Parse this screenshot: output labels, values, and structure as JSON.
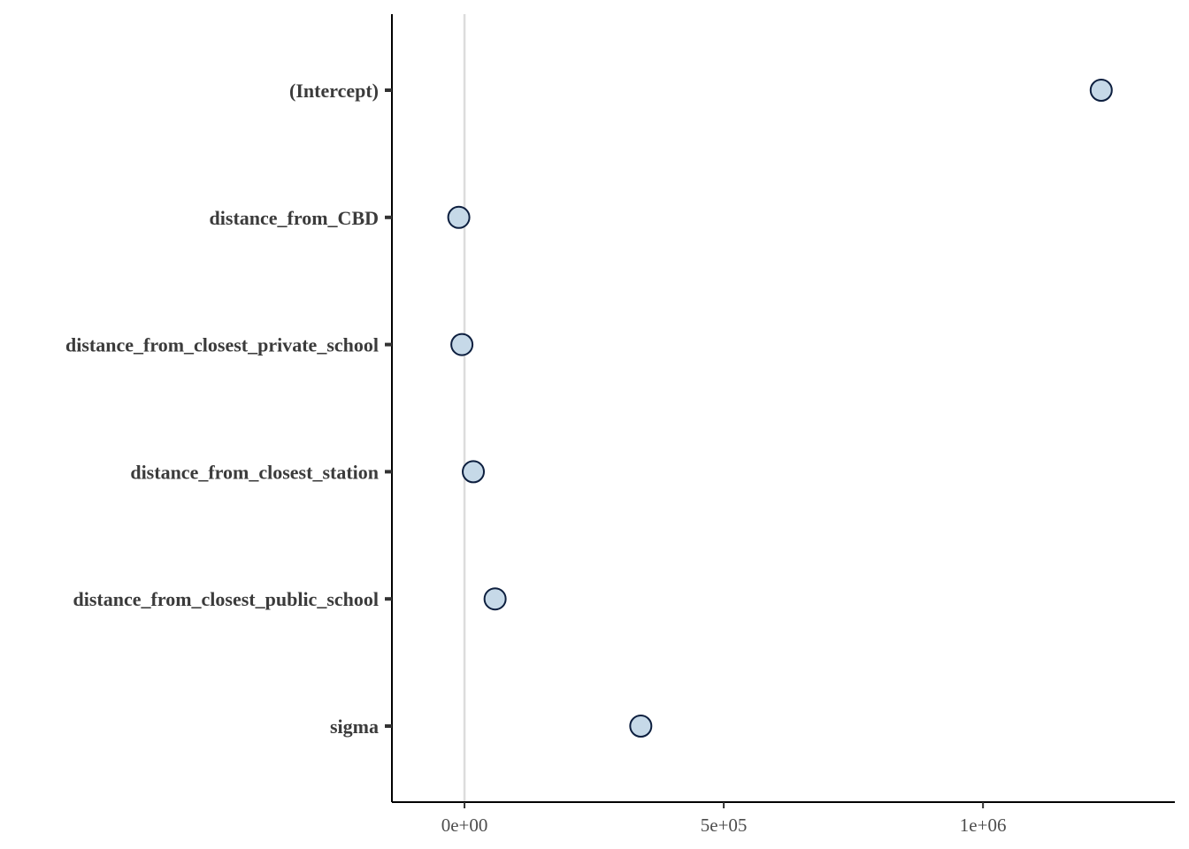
{
  "chart_data": {
    "type": "scatter",
    "orientation": "horizontal",
    "title": "",
    "xlabel": "",
    "ylabel": "",
    "categories": [
      "(Intercept)",
      "distance_from_CBD",
      "distance_from_closest_private_school",
      "distance_from_closest_station",
      "distance_from_closest_public_school",
      "sigma"
    ],
    "values": [
      1228000,
      -11000,
      -5000,
      17000,
      59000,
      340000
    ],
    "xlim": [
      -140000,
      1370000
    ],
    "x_ticks": [
      0,
      500000,
      1000000
    ],
    "x_tick_labels": [
      "0e+00",
      "5e+05",
      "1e+06"
    ],
    "reference_line_x": 0,
    "grid": false,
    "legend": "none",
    "colors": {
      "point_fill": "#c6d9e8",
      "point_stroke": "#0d1f3f",
      "reference_line": "#dcdcdc",
      "axis": "#000000",
      "tick_label": "#4d4d4d",
      "category_label": "#3b3b3b"
    }
  }
}
